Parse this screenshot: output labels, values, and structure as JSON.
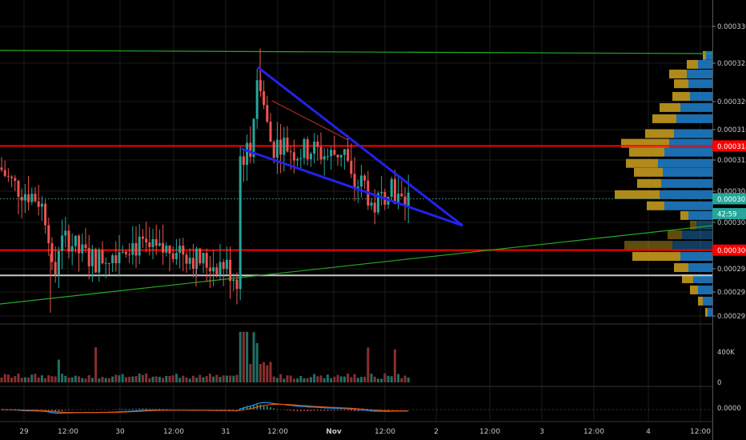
{
  "chart_data": {
    "type": "candlestick",
    "price_axis": {
      "ticks": [
        "0.0003300",
        "0.0003250",
        "0.0003200",
        "0.0003160",
        "0.0003120",
        "0.0003080",
        "0.0003040",
        "0.0002980",
        "0.0002950",
        "0.0002920"
      ],
      "tick_values": [
        0.00033,
        0.000325,
        0.00032,
        0.000316,
        0.000312,
        0.000308,
        0.000304,
        0.000298,
        0.000295,
        0.000292
      ],
      "ylim": [
        0.0002908,
        0.000334
      ]
    },
    "time_axis": {
      "labels": [
        "29",
        "12:00",
        "30",
        "12:00",
        "31",
        "12:00",
        "Nov",
        "12:00",
        "2",
        "12:00",
        "3",
        "12:00",
        "4",
        "12:00"
      ],
      "bold_labels": [
        "Nov"
      ]
    },
    "price_badges": [
      {
        "id": "red-upper",
        "text": "0.0003144",
        "value": 0.0003144,
        "color": "#ff0000"
      },
      {
        "id": "current",
        "text": "0.0003073",
        "value": 0.0003073,
        "color": "#26a69a"
      },
      {
        "id": "countdown",
        "text": "42:59",
        "value": 0.0003053,
        "color": "#26a69a"
      },
      {
        "id": "red-lower",
        "text": "0.0003004",
        "value": 0.0003004,
        "color": "#ff0000"
      }
    ],
    "horizontal_lines": [
      {
        "name": "resistance",
        "value": 0.0003144,
        "color": "#ff0000"
      },
      {
        "name": "support",
        "value": 0.0003004,
        "color": "#ff0000"
      },
      {
        "name": "white-level",
        "value": 0.000297,
        "color": "#c8c8c8"
      },
      {
        "name": "last-price",
        "value": 0.0003073,
        "color": "#2a7f7a"
      }
    ],
    "volume_axis": {
      "ticks": [
        "400K",
        "0"
      ],
      "tick_values": [
        400000,
        0
      ],
      "max": 620000
    },
    "macd_axis": {
      "ticks": [
        "0.0000"
      ],
      "tick_values": [
        0
      ]
    },
    "colors": {
      "up": "#26a69a",
      "down": "#ef5350",
      "background": "#000000",
      "grid": "#1b1b1b",
      "pattern_lines": "#2222ee",
      "trend_lines": "#22aa22",
      "macd_line": "#2196f3",
      "signal_line": "#e65100",
      "vp_up": "#1b6fb0",
      "vp_down": "#b08a1a"
    }
  }
}
